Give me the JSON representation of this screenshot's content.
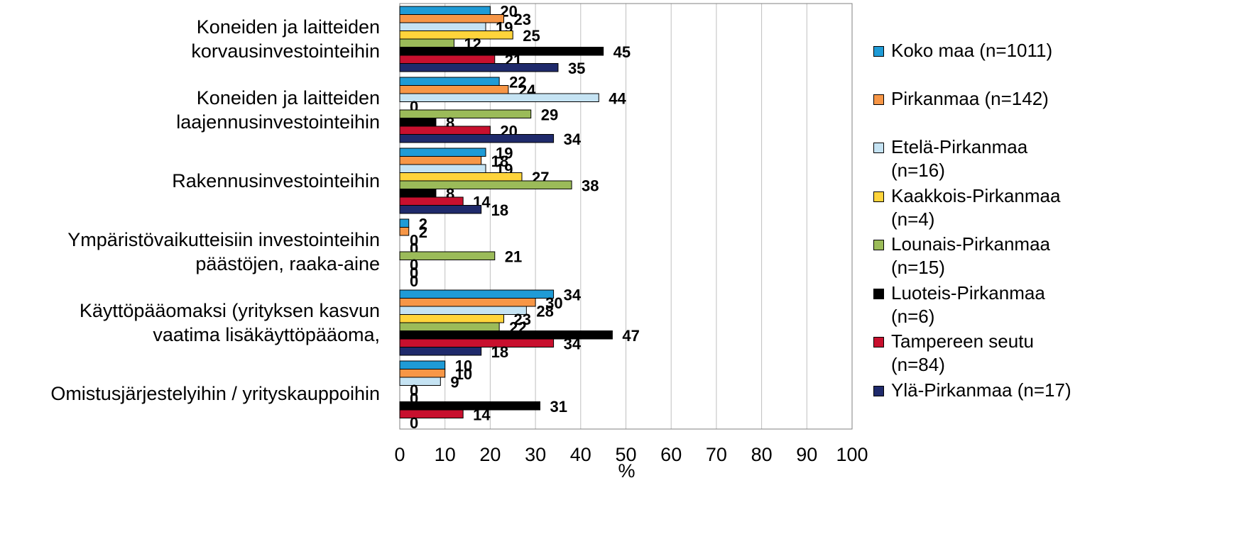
{
  "chart_data": {
    "type": "bar",
    "orientation": "horizontal",
    "categories": [
      "Koneiden ja laitteiden\nkorvausinvestointeihin",
      "Koneiden ja laitteiden\nlaajennusinvestointeihin",
      "Rakennusinvestointeihin",
      "Ympäristövaikutteisiin investointeihin\npäästöjen, raaka-aine",
      "Käyttöpääomaksi (yrityksen kasvun\nvaatima lisäkäyttöpääoma,",
      "Omistusjärjestelyihin / yrityskauppoihin"
    ],
    "series": [
      {
        "name": "Koko maa (n=1011)",
        "color": "#1f9bd6",
        "values": [
          20,
          22,
          19,
          2,
          34,
          10
        ]
      },
      {
        "name": "Pirkanmaa (n=142)",
        "color": "#f79646",
        "values": [
          23,
          24,
          18,
          2,
          30,
          10
        ]
      },
      {
        "name": "Etelä-Pirkanmaa\n(n=16)",
        "color": "#c5e3f3",
        "values": [
          19,
          44,
          19,
          0,
          28,
          9
        ]
      },
      {
        "name": "Kaakkois-Pirkanmaa\n(n=4)",
        "color": "#ffd43b",
        "values": [
          25,
          0,
          27,
          0,
          23,
          0
        ]
      },
      {
        "name": "Lounais-Pirkanmaa\n(n=15)",
        "color": "#9bbb59",
        "values": [
          12,
          29,
          38,
          21,
          22,
          0
        ]
      },
      {
        "name": "Luoteis-Pirkanmaa\n(n=6)",
        "color": "#000000",
        "values": [
          45,
          8,
          8,
          0,
          47,
          31
        ]
      },
      {
        "name": "Tampereen seutu\n(n=84)",
        "color": "#c8102e",
        "values": [
          21,
          20,
          14,
          0,
          34,
          14
        ]
      },
      {
        "name": "Ylä-Pirkanmaa (n=17)",
        "color": "#1f2a6b",
        "values": [
          35,
          34,
          18,
          0,
          18,
          0
        ]
      }
    ],
    "x_label": "%",
    "xlim": [
      0,
      100
    ],
    "xticks": [
      0,
      10,
      20,
      30,
      40,
      50,
      60,
      70,
      80,
      90,
      100
    ],
    "grid": true,
    "legend": "right"
  }
}
